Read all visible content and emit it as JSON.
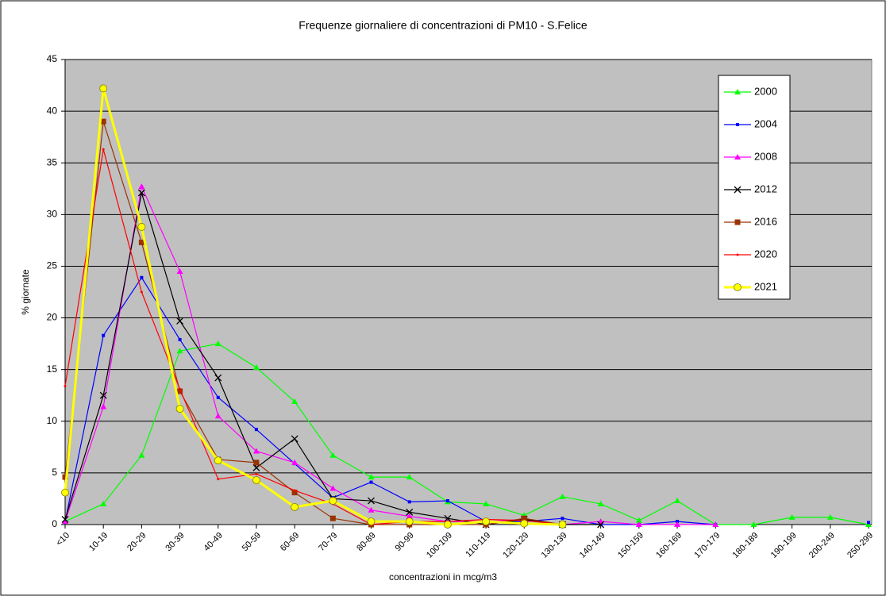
{
  "chart_data": {
    "type": "line",
    "title": "Frequenze  giornaliere di concentrazioni  di PM10 - S.Felice",
    "x_label": "concentrazioni in mcg/m3",
    "y_label": "% giornate",
    "categories": [
      "<10",
      "10-19",
      "20-29",
      "30-39",
      "40-49",
      "50-59",
      "60-69",
      "70-79",
      "80-89",
      "90-99",
      "100-109",
      "110-119",
      "120-129",
      "130-139",
      "140-149",
      "150-159",
      "160-169",
      "170-179",
      "180-189",
      "190-199",
      "200-249",
      "250-299"
    ],
    "ylim": [
      0,
      45
    ],
    "yticks": [
      0,
      5,
      10,
      15,
      20,
      25,
      30,
      35,
      40,
      45
    ],
    "grid": true,
    "legend": "right",
    "series": [
      {
        "name": "2000",
        "color": "#00ff00",
        "marker": "triangle",
        "values": [
          0.3,
          2,
          6.7,
          16.8,
          17.5,
          15.2,
          11.9,
          6.7,
          4.6,
          4.6,
          2.2,
          2,
          0.9,
          2.7,
          2,
          0.4,
          2.3,
          0,
          0,
          0.7,
          0.7,
          0
        ]
      },
      {
        "name": "2004",
        "color": "#0000ff",
        "marker": "square-small",
        "values": [
          0.3,
          18.3,
          23.9,
          17.9,
          12.3,
          9.2,
          5.9,
          2.6,
          4.1,
          2.2,
          2.3,
          0.3,
          0.3,
          0.6,
          0,
          0,
          0.3,
          0,
          null,
          null,
          null,
          0.2
        ]
      },
      {
        "name": "2008",
        "color": "#ff00ff",
        "marker": "triangle",
        "values": [
          0.3,
          11.4,
          32.7,
          24.5,
          10.5,
          7.1,
          6,
          3.5,
          1.4,
          0.8,
          0.3,
          0.3,
          0.5,
          0,
          0.3,
          0,
          0,
          0,
          null,
          null,
          null,
          null
        ]
      },
      {
        "name": "2012",
        "color": "#000000",
        "marker": "x",
        "values": [
          0.5,
          12.5,
          32.1,
          19.7,
          14.2,
          5.5,
          8.3,
          2.5,
          2.3,
          1.2,
          0.6,
          0,
          0.5,
          0,
          0,
          null,
          null,
          null,
          null,
          null,
          null,
          null
        ]
      },
      {
        "name": "2016",
        "color": "#993300",
        "marker": "square",
        "values": [
          4.6,
          39,
          27.3,
          12.9,
          6.3,
          6,
          3.1,
          0.6,
          0,
          0,
          0,
          0,
          0.6,
          0,
          null,
          null,
          null,
          null,
          null,
          null,
          null,
          null
        ]
      },
      {
        "name": "2020",
        "color": "#ff0000",
        "marker": "dot",
        "values": [
          13.4,
          36.3,
          22.5,
          13.1,
          4.4,
          4.9,
          3.3,
          2,
          0,
          0.3,
          0.3,
          0.5,
          0.4,
          0,
          null,
          null,
          null,
          null,
          null,
          null,
          null,
          null
        ]
      },
      {
        "name": "2021",
        "color": "#ffff00",
        "marker": "circle",
        "width": 3,
        "values": [
          3.1,
          42.2,
          28.8,
          11.2,
          6.2,
          4.3,
          1.7,
          2.3,
          0.3,
          0.3,
          0,
          0.3,
          0.1,
          0,
          null,
          null,
          null,
          null,
          null,
          null,
          null,
          null
        ]
      }
    ]
  }
}
